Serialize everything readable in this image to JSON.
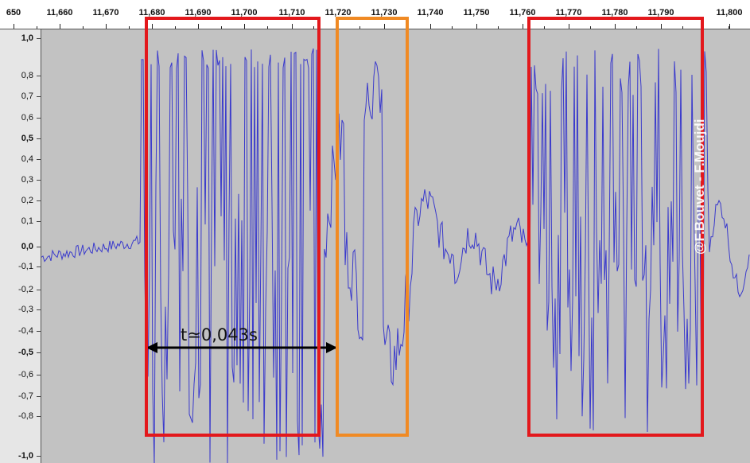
{
  "ruler": {
    "labels": [
      "650",
      "11,660",
      "11,670",
      "11,680",
      "11,690",
      "11,700",
      "11,710",
      "11,720",
      "11,730",
      "11,740",
      "11,750",
      "11,760",
      "11,770",
      "11,780",
      "11,790",
      "11,800"
    ]
  },
  "yaxis": {
    "labels": [
      "1,0",
      "0,8",
      "0,7",
      "0,6",
      "0,5",
      "0,4",
      "0,3",
      "0,2",
      "0,1",
      "0,0",
      "-0,1",
      "-0,2",
      "-0,3",
      "-0,4",
      "-0,5",
      "-0,6",
      "-0,7",
      "-0,8",
      "-1,0"
    ]
  },
  "annotation": {
    "duration_label": "t≃0,043s"
  },
  "watermark": "@F.Bouvet - F.Moujdi",
  "colors": {
    "waveform": "#3a3acc",
    "plot_background": "#c2c2c2",
    "box_red": "#e3181c",
    "box_orange": "#f08a24"
  }
}
